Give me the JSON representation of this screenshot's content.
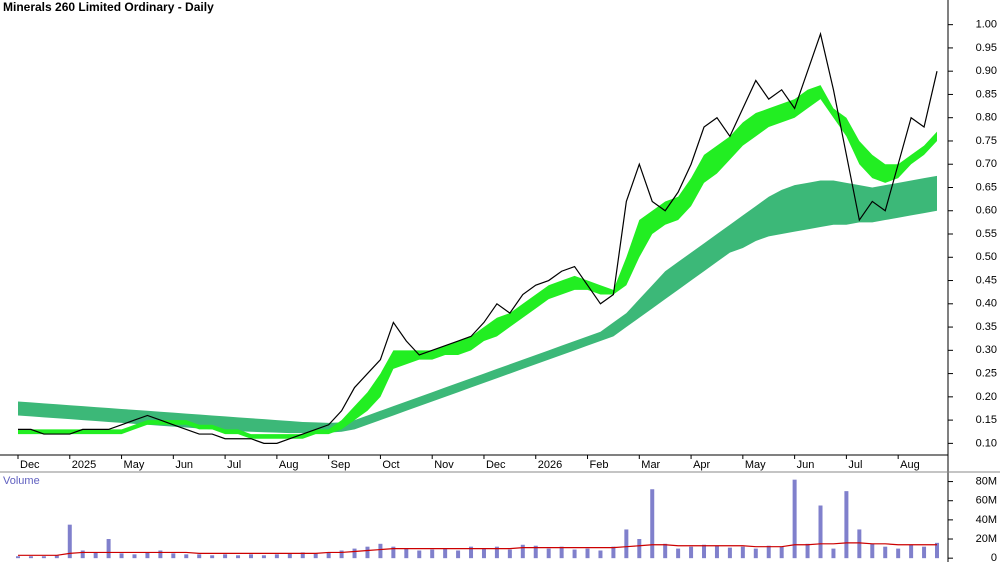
{
  "chart_data": [
    {
      "type": "line",
      "title": "Minerals 260 Limited Ordinary - Daily",
      "categories": [
        "Dec",
        null,
        null,
        null,
        "2025",
        null,
        null,
        null,
        "May",
        null,
        null,
        null,
        "Jun",
        null,
        null,
        null,
        "Jul",
        null,
        null,
        null,
        "Aug",
        null,
        null,
        null,
        "Sep",
        null,
        null,
        null,
        "Oct",
        null,
        null,
        null,
        "Nov",
        null,
        null,
        null,
        "Dec",
        null,
        null,
        null,
        "2026",
        null,
        null,
        null,
        "Feb",
        null,
        null,
        null,
        "Mar",
        null,
        null,
        null,
        "Apr",
        null,
        null,
        null,
        "May",
        null,
        null,
        null,
        "Jun",
        null,
        null,
        null,
        "Jul",
        null,
        null,
        null,
        "Aug",
        null,
        null,
        null
      ],
      "color": "#000000",
      "values": [
        0.13,
        0.13,
        0.12,
        0.12,
        0.12,
        0.13,
        0.13,
        0.13,
        0.14,
        0.15,
        0.16,
        0.15,
        0.14,
        0.13,
        0.12,
        0.12,
        0.11,
        0.11,
        0.11,
        0.1,
        0.1,
        0.11,
        0.12,
        0.13,
        0.14,
        0.17,
        0.22,
        0.25,
        0.28,
        0.36,
        0.32,
        0.29,
        0.3,
        0.31,
        0.32,
        0.33,
        0.36,
        0.4,
        0.38,
        0.42,
        0.44,
        0.45,
        0.47,
        0.48,
        0.44,
        0.4,
        0.42,
        0.62,
        0.7,
        0.62,
        0.6,
        0.64,
        0.7,
        0.78,
        0.8,
        0.76,
        0.82,
        0.88,
        0.84,
        0.86,
        0.82,
        0.9,
        0.98,
        0.86,
        0.72,
        0.58,
        0.62,
        0.6,
        0.7,
        0.8,
        0.78,
        0.9
      ],
      "bands": [
        {
          "color": "#3cb878",
          "upper": [
            0.19,
            0.188,
            0.186,
            0.184,
            0.182,
            0.18,
            0.178,
            0.176,
            0.174,
            0.172,
            0.17,
            0.168,
            0.166,
            0.164,
            0.162,
            0.16,
            0.158,
            0.156,
            0.154,
            0.152,
            0.15,
            0.148,
            0.146,
            0.145,
            0.144,
            0.145,
            0.15,
            0.16,
            0.17,
            0.18,
            0.19,
            0.2,
            0.21,
            0.22,
            0.23,
            0.24,
            0.25,
            0.26,
            0.27,
            0.28,
            0.29,
            0.3,
            0.31,
            0.32,
            0.33,
            0.34,
            0.36,
            0.38,
            0.41,
            0.44,
            0.47,
            0.49,
            0.51,
            0.53,
            0.55,
            0.57,
            0.59,
            0.61,
            0.63,
            0.645,
            0.655,
            0.66,
            0.665,
            0.665,
            0.66,
            0.655,
            0.65,
            0.655,
            0.66,
            0.665,
            0.67,
            0.675
          ],
          "lower": [
            0.16,
            0.158,
            0.156,
            0.154,
            0.152,
            0.15,
            0.148,
            0.146,
            0.144,
            0.142,
            0.14,
            0.138,
            0.136,
            0.134,
            0.132,
            0.13,
            0.128,
            0.126,
            0.125,
            0.124,
            0.123,
            0.122,
            0.122,
            0.122,
            0.123,
            0.125,
            0.13,
            0.14,
            0.15,
            0.16,
            0.17,
            0.18,
            0.19,
            0.2,
            0.21,
            0.22,
            0.23,
            0.24,
            0.25,
            0.26,
            0.27,
            0.28,
            0.29,
            0.3,
            0.31,
            0.32,
            0.33,
            0.35,
            0.37,
            0.39,
            0.41,
            0.43,
            0.45,
            0.47,
            0.49,
            0.51,
            0.52,
            0.535,
            0.545,
            0.55,
            0.555,
            0.56,
            0.565,
            0.57,
            0.57,
            0.575,
            0.575,
            0.58,
            0.585,
            0.59,
            0.595,
            0.6
          ]
        },
        {
          "color": "#22ee22",
          "upper": [
            0.13,
            0.13,
            0.13,
            0.13,
            0.13,
            0.13,
            0.13,
            0.13,
            0.13,
            0.14,
            0.15,
            0.15,
            0.15,
            0.15,
            0.14,
            0.14,
            0.13,
            0.13,
            0.12,
            0.12,
            0.12,
            0.12,
            0.12,
            0.13,
            0.13,
            0.15,
            0.18,
            0.21,
            0.25,
            0.3,
            0.3,
            0.3,
            0.3,
            0.31,
            0.32,
            0.33,
            0.35,
            0.37,
            0.38,
            0.4,
            0.42,
            0.44,
            0.45,
            0.46,
            0.45,
            0.44,
            0.43,
            0.5,
            0.58,
            0.6,
            0.62,
            0.63,
            0.67,
            0.72,
            0.74,
            0.76,
            0.79,
            0.81,
            0.82,
            0.83,
            0.84,
            0.86,
            0.87,
            0.82,
            0.8,
            0.75,
            0.72,
            0.7,
            0.7,
            0.72,
            0.74,
            0.77
          ],
          "lower": [
            0.12,
            0.12,
            0.12,
            0.12,
            0.12,
            0.12,
            0.12,
            0.12,
            0.12,
            0.13,
            0.14,
            0.14,
            0.14,
            0.14,
            0.13,
            0.13,
            0.12,
            0.12,
            0.11,
            0.11,
            0.11,
            0.11,
            0.11,
            0.12,
            0.12,
            0.13,
            0.15,
            0.17,
            0.2,
            0.26,
            0.27,
            0.28,
            0.28,
            0.29,
            0.29,
            0.3,
            0.32,
            0.33,
            0.35,
            0.37,
            0.39,
            0.41,
            0.42,
            0.43,
            0.43,
            0.42,
            0.42,
            0.44,
            0.5,
            0.55,
            0.57,
            0.58,
            0.61,
            0.66,
            0.68,
            0.71,
            0.74,
            0.76,
            0.78,
            0.79,
            0.8,
            0.82,
            0.84,
            0.8,
            0.76,
            0.7,
            0.67,
            0.66,
            0.67,
            0.7,
            0.72,
            0.75
          ]
        }
      ],
      "ylim": [
        0.075,
        1.053
      ],
      "yticks": [
        {
          "value": 0.1,
          "label": "0.10"
        },
        {
          "value": 0.15,
          "label": "0.15"
        },
        {
          "value": 0.2,
          "label": "0.20"
        },
        {
          "value": 0.25,
          "label": "0.25"
        },
        {
          "value": 0.3,
          "label": "0.30"
        },
        {
          "value": 0.35,
          "label": "0.35"
        },
        {
          "value": 0.4,
          "label": "0.40"
        },
        {
          "value": 0.45,
          "label": "0.45"
        },
        {
          "value": 0.5,
          "label": "0.50"
        },
        {
          "value": 0.55,
          "label": "0.55"
        },
        {
          "value": 0.6,
          "label": "0.60"
        },
        {
          "value": 0.65,
          "label": "0.65"
        },
        {
          "value": 0.7,
          "label": "0.70"
        },
        {
          "value": 0.75,
          "label": "0.75"
        },
        {
          "value": 0.8,
          "label": "0.80"
        },
        {
          "value": 0.85,
          "label": "0.85"
        },
        {
          "value": 0.9,
          "label": "0.90"
        },
        {
          "value": 0.95,
          "label": "0.95"
        },
        {
          "value": 1.0,
          "label": "1.00"
        }
      ]
    },
    {
      "type": "bar",
      "title": "Volume",
      "color": "#8080cc",
      "values": [
        2,
        2,
        2,
        3,
        35,
        8,
        6,
        20,
        5,
        4,
        6,
        8,
        5,
        4,
        4,
        3,
        4,
        3,
        4,
        3,
        4,
        5,
        6,
        5,
        6,
        8,
        10,
        12,
        15,
        12,
        10,
        8,
        9,
        10,
        8,
        12,
        10,
        12,
        9,
        14,
        13,
        10,
        12,
        9,
        10,
        8,
        12,
        30,
        20,
        72,
        15,
        10,
        12,
        14,
        13,
        11,
        12,
        10,
        13,
        12,
        82,
        15,
        55,
        10,
        70,
        30,
        15,
        12,
        10,
        14,
        12,
        16
      ],
      "average": {
        "color": "#cc0000",
        "values": [
          3,
          3,
          3,
          3,
          5,
          6,
          6,
          6,
          6,
          6,
          6,
          6,
          6,
          6,
          5,
          5,
          5,
          5,
          5,
          5,
          5,
          5,
          5,
          5,
          6,
          6,
          7,
          8,
          9,
          10,
          10,
          10,
          10,
          10,
          10,
          10,
          10,
          10,
          10,
          11,
          11,
          11,
          11,
          11,
          11,
          11,
          11,
          12,
          13,
          14,
          14,
          13,
          13,
          13,
          13,
          13,
          13,
          12,
          12,
          12,
          14,
          14,
          15,
          15,
          16,
          16,
          15,
          15,
          14,
          14,
          14,
          14
        ]
      },
      "ylim": [
        -4,
        90
      ],
      "yticks": [
        0,
        {
          "value": 20,
          "label": "20M"
        },
        {
          "value": 40,
          "label": "40M"
        },
        {
          "value": 60,
          "label": "60M"
        },
        {
          "value": 80,
          "label": "80M"
        }
      ]
    }
  ]
}
